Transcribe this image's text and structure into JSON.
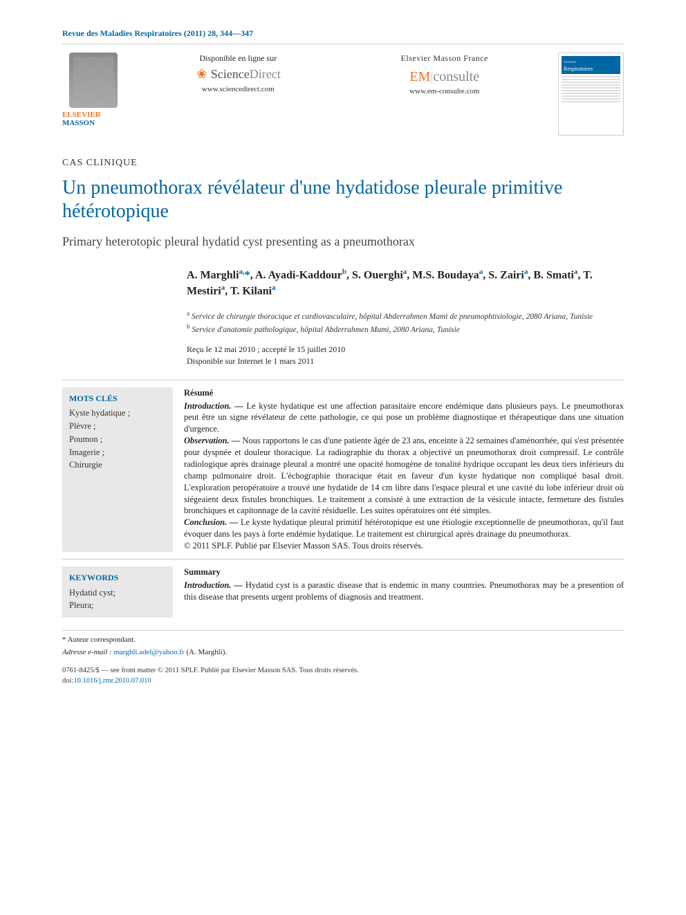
{
  "journal_ref": "Revue des Maladies Respiratoires (2011) 28, 344—347",
  "publisher": {
    "line1": "ELSEVIER",
    "line2": "MASSON"
  },
  "online1": {
    "avail": "Disponible en ligne sur",
    "brand1": "Science",
    "brand2": "Direct",
    "url": "www.sciencedirect.com"
  },
  "online2": {
    "company": "Elsevier Masson France",
    "brand1": "EM",
    "brand2": "consulte",
    "url": "www.em-consulte.com"
  },
  "cover": {
    "sup": "Maladies",
    "title": "Respiratoires"
  },
  "article_type": "CAS CLINIQUE",
  "title": "Un pneumothorax révélateur d'une hydatidose pleurale primitive hétérotopique",
  "subtitle": "Primary heterotopic pleural hydatid cyst presenting as a pneumothorax",
  "authors_html": "A. Marghli<sup>a,</sup><span class='star'>*</span>, A. Ayadi-Kaddour<sup>b</sup>, S. Ouerghi<sup>a</sup>, M.S. Boudaya<sup>a</sup>, S. Zairi<sup>a</sup>, B. Smati<sup>a</sup>, T. Mestiri<sup>a</sup>, T. Kilani<sup>a</sup>",
  "affil_a": "Service de chirurgie thoracique et cardiovasculaire, hôpital Abderrahmen Mami de pneumophtisiologie, 2080 Ariana, Tunisie",
  "affil_b": "Service d'anatomie pathologique, hôpital Abderrahmen Mami, 2080 Ariana, Tunisie",
  "dates1": "Reçu le 12 mai 2010 ; accepté le 15 juillet 2010",
  "dates2": "Disponible sur Internet le 1 mars 2011",
  "mots_head": "MOTS CLÉS",
  "mots": "Kyste hydatique ;\nPlèvre ;\nPoumon ;\nImagerie ;\nChirurgie",
  "resume_head": "Résumé",
  "resume_intro_label": "Introduction. —",
  "resume_intro": " Le kyste hydatique est une affection parasitaire encore endémique dans plusieurs pays. Le pneumothorax peut être un signe révélateur de cette pathologie, ce qui pose un problème diagnostique et thérapeutique dans une situation d'urgence.",
  "resume_obs_label": "Observation. —",
  "resume_obs": " Nous rapportons le cas d'une patiente âgée de 23 ans, enceinte à 22 semaines d'aménorrhée, qui s'est présentée pour dyspnée et douleur thoracique. La radiographie du thorax a objectivé un pneumothorax droit compressif. Le contrôle radiologique après drainage pleural a montré une opacité homogène de tonalité hydrique occupant les deux tiers inférieurs du champ pulmonaire droit. L'échographie thoracique était en faveur d'un kyste hydatique non compliqué basal droit. L'exploration peropératoire a trouvé une hydatide de 14 cm libre dans l'espace pleural et une cavité du lobe inférieur droit où siégeaient deux fistules bronchiques. Le traitement a consisté à une extraction de la vésicule intacte, fermeture des fistules bronchiques et capitonnage de la cavité résiduelle. Les suites opératoires ont été simples.",
  "resume_concl_label": "Conclusion. —",
  "resume_concl": " Le kyste hydatique pleural primitif hétérotopique est une étiologie exceptionnelle de pneumothorax, qu'il faut évoquer dans les pays à forte endémie hydatique. Le traitement est chirurgical après drainage du pneumothorax.",
  "resume_copy": "© 2011 SPLF. Publié par Elsevier Masson SAS. Tous droits réservés.",
  "kw_head": "KEYWORDS",
  "kw": "Hydatid cyst;\nPleura;",
  "summary_head": "Summary",
  "summary_intro_label": "Introduction. —",
  "summary_intro": " Hydatid cyst is a parastic disease that is endemic in many countries. Pneumothorax may be a presention of this disease that presents urgent problems of diagnosis and treatment.",
  "fn_star": "* Auteur correspondant.",
  "fn_email_label": "Adresse e-mail :",
  "fn_email": "marghli.adel@yahoo.fr",
  "fn_email_name": " (A. Marghli).",
  "copy1": "0761-8425/$ — see front matter © 2011 SPLF. Publié par Elsevier Masson SAS. Tous droits réservés.",
  "copy2": "doi:",
  "doi": "10.1016/j.rmr.2010.07.010"
}
